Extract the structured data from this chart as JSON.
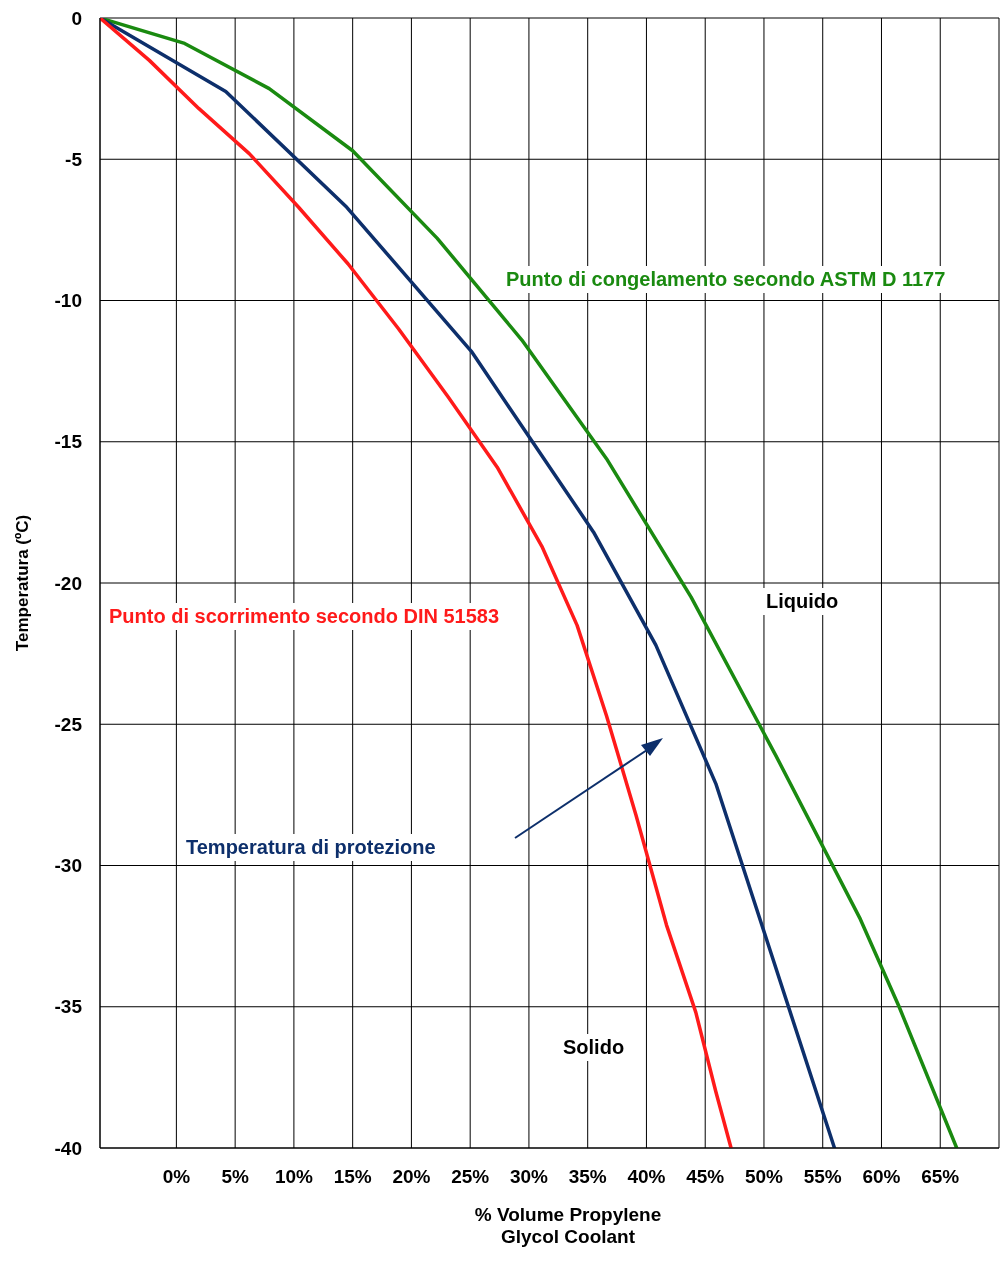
{
  "chart_data": {
    "type": "line",
    "xlabel": "% Volume Propylene Glycol Coolant",
    "ylabel": "Temperatura (ºC)",
    "xlim": [
      -6.5,
      70
    ],
    "ylim": [
      -40,
      0
    ],
    "xticks": [
      {
        "value": 0,
        "label": "0%"
      },
      {
        "value": 5,
        "label": "5%"
      },
      {
        "value": 10,
        "label": "10%"
      },
      {
        "value": 15,
        "label": "15%"
      },
      {
        "value": 20,
        "label": "20%"
      },
      {
        "value": 25,
        "label": "25%"
      },
      {
        "value": 30,
        "label": "30%"
      },
      {
        "value": 35,
        "label": "35%"
      },
      {
        "value": 40,
        "label": "40%"
      },
      {
        "value": 45,
        "label": "45%"
      },
      {
        "value": 50,
        "label": "50%"
      },
      {
        "value": 55,
        "label": "55%"
      },
      {
        "value": 60,
        "label": "60%"
      },
      {
        "value": 65,
        "label": "65%"
      }
    ],
    "yticks": [
      -40,
      -35,
      -30,
      -25,
      -20,
      -15,
      -10,
      -5,
      0
    ],
    "grid": true,
    "marker": "none",
    "line_style": "solid",
    "series": [
      {
        "name": "Punto di congelamento secondo ASTM D 1177",
        "color": "#1a8a10",
        "x": [
          -6.5,
          0.7,
          7.9,
          15,
          22.2,
          29.4,
          36.6,
          43.8,
          51,
          58.2,
          61.5,
          66.4
        ],
        "values": [
          0,
          -0.9,
          -2.5,
          -4.7,
          -7.8,
          -11.4,
          -15.6,
          -20.5,
          -26.1,
          -31.9,
          -35,
          -40
        ]
      },
      {
        "name": "Temperatura di protezione",
        "color": "#0d2f6b",
        "x": [
          -6.5,
          4.2,
          14.5,
          25.1,
          35.5,
          40.8,
          45.9,
          56
        ],
        "values": [
          0,
          -2.6,
          -6.7,
          -11.8,
          -18.2,
          -22.2,
          -27.1,
          -40
        ]
      },
      {
        "name": "Punto di scorrimento secondo DIN 51583",
        "color": "#ff1a1a",
        "x": [
          -6.5,
          -2.3,
          1.9,
          6.2,
          10.4,
          14.6,
          18.9,
          23.1,
          27.3,
          31.1,
          34.1,
          36.6,
          39.1,
          41.7,
          44.2,
          45.9,
          47.2
        ],
        "values": [
          0,
          -1.5,
          -3.2,
          -4.8,
          -6.7,
          -8.7,
          -11,
          -13.4,
          -15.9,
          -18.7,
          -21.5,
          -24.7,
          -28.2,
          -32.1,
          -35.2,
          -38,
          -40
        ]
      }
    ],
    "annotations": [
      "Liquido",
      "Solido"
    ]
  }
}
